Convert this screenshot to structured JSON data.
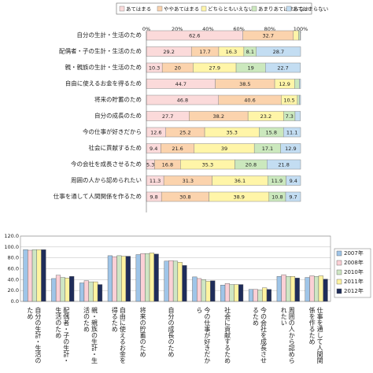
{
  "chart_data": [
    {
      "type": "stacked-barh",
      "legend": "top",
      "categories": [
        "自分の生計・生活のため",
        "配偶者・子の生計・生活のため",
        "親・親族の生計・生活のため",
        "自由に使えるお金を得るため",
        "将来の貯蓄のため",
        "自分の成長のため",
        "今の仕事が好きだから",
        "社会に貢献するため",
        "今の会社を成長させるため",
        "周囲の人から認められたい",
        "仕事を通して人間関係を作るため"
      ],
      "series": [
        {
          "name": "あてはまる",
          "color": "#fbdada",
          "values": [
            62.6,
            29.2,
            10.3,
            44.7,
            46.8,
            27.7,
            12.6,
            9.4,
            5.3,
            11.3,
            9.8
          ]
        },
        {
          "name": "ややあてはまる",
          "color": "#fbd3ad",
          "values": [
            32.7,
            17.7,
            20.0,
            38.5,
            40.6,
            38.2,
            25.2,
            21.6,
            16.8,
            31.3,
            30.8
          ]
        },
        {
          "name": "どちらともいえない",
          "color": "#fff5a8",
          "values": [
            3.4,
            16.3,
            27.9,
            12.9,
            10.5,
            23.2,
            35.3,
            39.0,
            35.3,
            36.1,
            38.9
          ]
        },
        {
          "name": "あまりあてはまらない",
          "color": "#cbe8bd",
          "values": [
            1.0,
            8.1,
            19.0,
            3.1,
            1.3,
            7.3,
            15.8,
            17.1,
            20.8,
            11.9,
            10.8
          ]
        },
        {
          "name": "あてはまらない",
          "color": "#c3ddf2",
          "values": [
            0.3,
            28.7,
            22.7,
            0.8,
            0.8,
            3.5,
            11.1,
            12.9,
            21.8,
            9.4,
            9.7
          ]
        }
      ],
      "xlim": [
        0,
        100
      ],
      "xticks": [
        {
          "value": 0,
          "label": "0%"
        },
        {
          "value": 20,
          "label": "20%"
        },
        {
          "value": 40,
          "label": "40%"
        },
        {
          "value": 60,
          "label": "60%"
        },
        {
          "value": 80,
          "label": "80%"
        },
        {
          "value": 100,
          "label": "100%"
        }
      ]
    },
    {
      "type": "bar",
      "legend": "right",
      "grid": true,
      "categories": [
        "自分の生計・生活のため",
        "配偶者・子の生計・生活のため",
        "親・親族の生計・生活のため",
        "自由に使えるお金を得るため",
        "将来の貯蓄のため",
        "自分の成長のため",
        "今の仕事が好きだから",
        "社会に貢献するため",
        "今の会社を成長させるため",
        "周囲の人から認められたい",
        "仕事を通して人間関係を作るため"
      ],
      "series": [
        {
          "name": "2007年",
          "color": "#9fc5e8",
          "values": [
            95,
            42,
            34,
            84,
            86,
            74,
            45,
            30,
            22,
            46,
            44
          ]
        },
        {
          "name": "2008年",
          "color": "#fbd0d6",
          "values": [
            94,
            48,
            38,
            82,
            88,
            75,
            42,
            33,
            22,
            49,
            47
          ]
        },
        {
          "name": "2010年",
          "color": "#cfe6c4",
          "values": [
            95,
            44,
            36,
            84,
            88,
            74,
            40,
            31,
            21,
            46,
            46
          ]
        },
        {
          "name": "2011年",
          "color": "#fff3a0",
          "values": [
            95,
            43,
            36,
            83,
            89,
            72,
            37,
            31,
            25,
            46,
            47
          ]
        },
        {
          "name": "2012年",
          "color": "#1f2d5a",
          "values": [
            95,
            46,
            31,
            83,
            87,
            66,
            38,
            31,
            22,
            43,
            41
          ]
        }
      ],
      "ylim": [
        0,
        120
      ],
      "yticks": [
        {
          "value": 0,
          "label": "0.0"
        },
        {
          "value": 20,
          "label": "20.0"
        },
        {
          "value": 40,
          "label": "40.0"
        },
        {
          "value": 60,
          "label": "60.0"
        },
        {
          "value": 80,
          "label": "80.0"
        },
        {
          "value": 100,
          "label": "100.0"
        },
        {
          "value": 120,
          "label": "120.0"
        }
      ]
    }
  ]
}
